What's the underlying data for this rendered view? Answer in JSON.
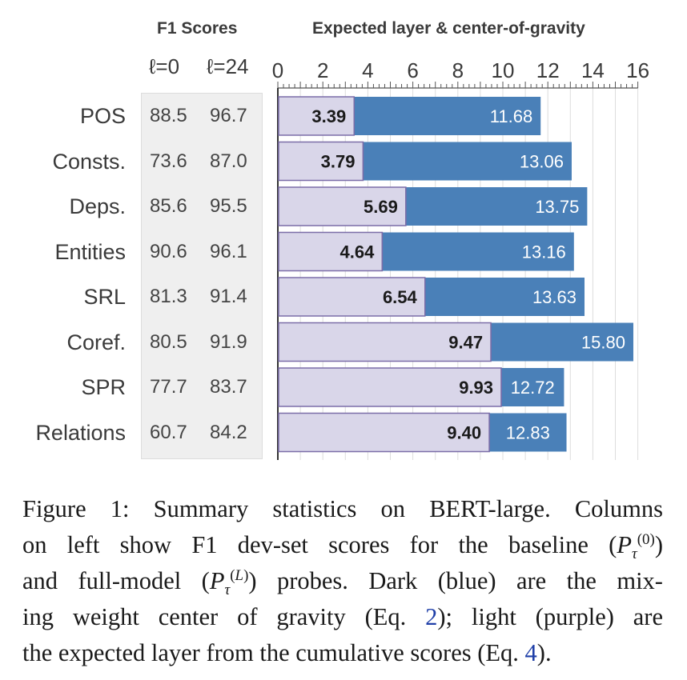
{
  "headers": {
    "f1_title": "F1 Scores",
    "layer_title": "Expected layer & center-of-gravity",
    "col_l0": "ℓ=0",
    "col_l24": "ℓ=24"
  },
  "colors": {
    "expected_layer": "#d9d6e9",
    "center_of_gravity": "#4a80b8",
    "bar_border": "#7b6da8",
    "grid": "#dddddd",
    "f1_panel": "#efefef"
  },
  "chart_data": {
    "type": "bar",
    "orientation": "horizontal",
    "xlim": [
      0,
      16
    ],
    "xticks": [
      0,
      2,
      4,
      6,
      8,
      10,
      12,
      14,
      16
    ],
    "grid": true,
    "categories": [
      "POS",
      "Consts.",
      "Deps.",
      "Entities",
      "SRL",
      "Coref.",
      "SPR",
      "Relations"
    ],
    "f1_scores": {
      "l0": [
        "88.5",
        "73.6",
        "85.6",
        "90.6",
        "81.3",
        "80.5",
        "77.7",
        "60.7"
      ],
      "l24": [
        "96.7",
        "87.0",
        "95.5",
        "96.1",
        "91.4",
        "91.9",
        "83.7",
        "84.2"
      ]
    },
    "series": [
      {
        "values": [
          3.39,
          3.79,
          5.69,
          4.64,
          6.54,
          9.47,
          9.93,
          9.4
        ]
      },
      {
        "values": [
          11.68,
          13.06,
          13.75,
          13.16,
          13.63,
          15.8,
          12.72,
          12.83
        ]
      }
    ]
  },
  "caption": {
    "lines": [
      "Figure 1: Summary statistics on BERT-large. Columns",
      "on left show F1 dev-set scores for the baseline",
      "and full-model",
      "probes. Dark (blue) are the mix-",
      "ing weight center of gravity (Eq.",
      "); light (purple) are",
      "the expected layer from the cumulative scores (Eq.",
      ")."
    ],
    "ref_eq2": "2",
    "ref_eq4": "4"
  }
}
